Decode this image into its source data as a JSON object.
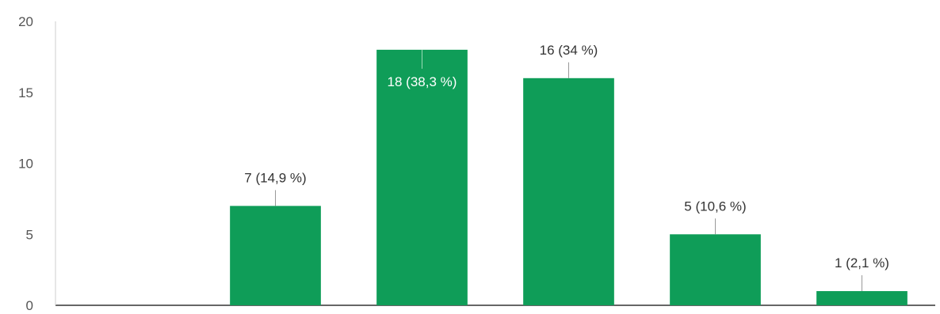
{
  "chart_data": {
    "type": "bar",
    "title": "",
    "xlabel": "",
    "ylabel": "",
    "categories": [
      "",
      "",
      "",
      "",
      "",
      ""
    ],
    "values": [
      0,
      7,
      18,
      16,
      5,
      1
    ],
    "data_labels": [
      "",
      "7 (14,9 %)",
      "18 (38,3 %)",
      "16 (34 %)",
      "5 (10,6 %)",
      "1 (2,1 %)"
    ],
    "ylim": [
      0,
      20
    ],
    "yticks": [
      "0",
      "5",
      "10",
      "15",
      "20"
    ],
    "grid": false,
    "legend": "none",
    "bar_color": "#0f9d58"
  }
}
